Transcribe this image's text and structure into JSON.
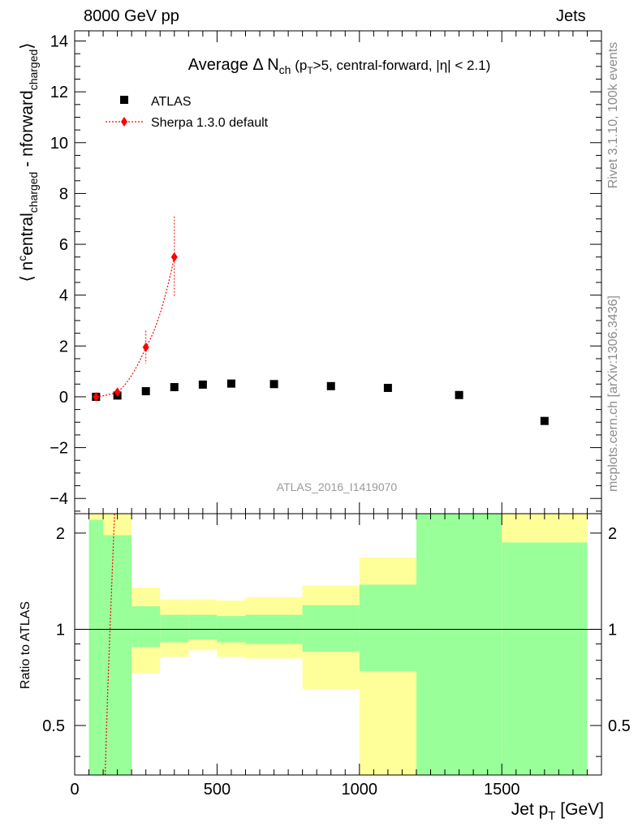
{
  "header": {
    "left": "8000 GeV pp",
    "right": "Jets",
    "side_top": "Rivet 3.1.10,  100k events",
    "side_bottom": "mcplots.cern.ch [arXiv:1306.3436]"
  },
  "chart_data": {
    "type": "scatter",
    "title": "Average Δ N_ch (p_T>5, central-forward, |η| < 2.1)",
    "title_parts": {
      "main": "Average Δ N",
      "sub1": "ch",
      "mid1": " (p",
      "sub2": "T",
      "rest": ">5, central-forward, |η| < 2.1)"
    },
    "ylabel": "⟨ n_central^charged - n_forward^charged ⟩",
    "ylabel_parts": {
      "open": "⟨ n",
      "sup": "c",
      "t1": "entral",
      "sub1": "charged",
      "t2": " - n",
      "t3": "forward",
      "sub2": "charged",
      "close": "⟩"
    },
    "xlabel": "Jet p_T [GeV]",
    "xlabel_parts": {
      "main": "Jet p",
      "sub": "T",
      "rest": " [GeV]"
    },
    "watermark": "ATLAS_2016_I1419070",
    "xlim": [
      0,
      1850
    ],
    "ylim": [
      -4.6,
      14.4
    ],
    "yticks": [
      "−4",
      "−2",
      "0",
      "2",
      "4",
      "6",
      "8",
      "10",
      "12",
      "14"
    ],
    "ytick_values": [
      -4,
      -2,
      0,
      2,
      4,
      6,
      8,
      10,
      12,
      14
    ],
    "xticks": [
      "0",
      "500",
      "1000",
      "1500"
    ],
    "xtick_values": [
      0,
      500,
      1000,
      1500
    ],
    "legend": [
      {
        "label": "ATLAS",
        "marker": "square",
        "color": "#000000"
      },
      {
        "label": "Sherpa 1.3.0 default",
        "marker": "diamond",
        "color": "#ff0000"
      }
    ],
    "series": [
      {
        "name": "ATLAS",
        "x": [
          75,
          150,
          250,
          350,
          450,
          550,
          700,
          900,
          1100,
          1350,
          1650
        ],
        "y": [
          0.0,
          0.05,
          0.22,
          0.38,
          0.48,
          0.52,
          0.5,
          0.42,
          0.35,
          0.07,
          -0.95
        ]
      },
      {
        "name": "Sherpa 1.3.0 default",
        "x": [
          75,
          150,
          250,
          350
        ],
        "y": [
          0.0,
          0.18,
          1.95,
          5.5
        ],
        "yerr": [
          0.05,
          0.1,
          0.65,
          1.6
        ]
      }
    ],
    "ratio": {
      "ylabel": "Ratio to ATLAS",
      "ylim": [
        0.35,
        2.3
      ],
      "yticks": [
        "0.5",
        "1",
        "2"
      ],
      "ytick_values": [
        0.5,
        1,
        2
      ],
      "bands": [
        {
          "x0": 50,
          "x1": 100,
          "g_lo": 0.3,
          "g_hi": 2.2,
          "y_lo": 0.3,
          "y_hi": 2.4
        },
        {
          "x0": 100,
          "x1": 200,
          "g_lo": 0.3,
          "g_hi": 1.97,
          "y_lo": 0.3,
          "y_hi": 2.4
        },
        {
          "x0": 200,
          "x1": 300,
          "g_lo": 0.88,
          "g_hi": 1.18,
          "y_lo": 0.73,
          "y_hi": 1.35
        },
        {
          "x0": 300,
          "x1": 400,
          "g_lo": 0.91,
          "g_hi": 1.11,
          "y_lo": 0.82,
          "y_hi": 1.24
        },
        {
          "x0": 400,
          "x1": 500,
          "g_lo": 0.93,
          "g_hi": 1.11,
          "y_lo": 0.86,
          "y_hi": 1.24
        },
        {
          "x0": 500,
          "x1": 600,
          "g_lo": 0.91,
          "g_hi": 1.1,
          "y_lo": 0.82,
          "y_hi": 1.23
        },
        {
          "x0": 600,
          "x1": 800,
          "g_lo": 0.9,
          "g_hi": 1.11,
          "y_lo": 0.81,
          "y_hi": 1.26
        },
        {
          "x0": 800,
          "x1": 1000,
          "g_lo": 0.85,
          "g_hi": 1.19,
          "y_lo": 0.65,
          "y_hi": 1.37
        },
        {
          "x0": 1000,
          "x1": 1200,
          "g_lo": 0.74,
          "g_hi": 1.38,
          "y_lo": 0.3,
          "y_hi": 1.68
        },
        {
          "x0": 1200,
          "x1": 1500,
          "g_lo": 0.3,
          "g_hi": 2.4,
          "y_lo": 0.3,
          "y_hi": 2.4
        },
        {
          "x0": 1500,
          "x1": 1800,
          "g_lo": 0.3,
          "g_hi": 1.87,
          "y_lo": 0.3,
          "y_hi": 2.4
        }
      ],
      "sherpa_line": {
        "x": [
          107,
          115,
          124,
          133,
          140
        ],
        "y": [
          0.3,
          0.6,
          1.0,
          1.6,
          2.4
        ]
      }
    },
    "colors": {
      "band_green": "#99ff99",
      "band_yellow": "#ffff99",
      "sherpa": "#ff0000",
      "atlas": "#000000",
      "side_text": "#8c8c8c",
      "watermark": "#999999"
    }
  }
}
